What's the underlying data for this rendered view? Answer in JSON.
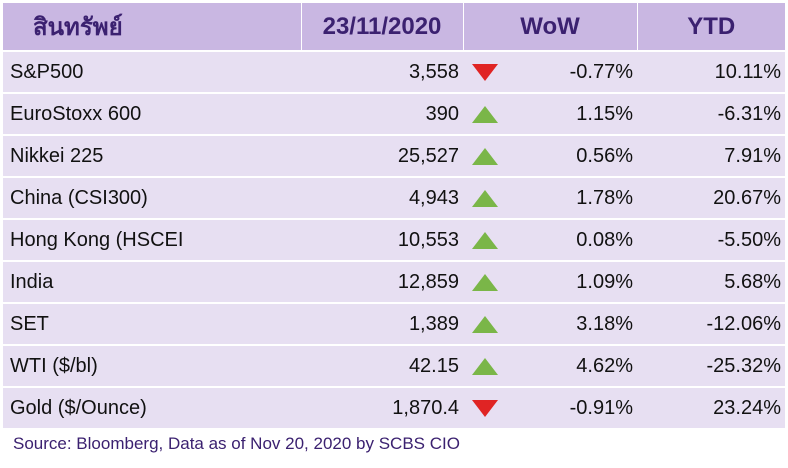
{
  "chart_data": {
    "type": "table",
    "columns": [
      "สินทรัพย์",
      "23/11/2020",
      "WoW",
      "YTD"
    ],
    "rows": [
      {
        "asset": "S&P500",
        "value": "3,558",
        "direction": "down",
        "wow": "-0.77%",
        "ytd": "10.11%"
      },
      {
        "asset": "EuroStoxx 600",
        "value": "390",
        "direction": "up",
        "wow": "1.15%",
        "ytd": "-6.31%"
      },
      {
        "asset": "Nikkei 225",
        "value": "25,527",
        "direction": "up",
        "wow": "0.56%",
        "ytd": "7.91%"
      },
      {
        "asset": "China (CSI300)",
        "value": "4,943",
        "direction": "up",
        "wow": "1.78%",
        "ytd": "20.67%"
      },
      {
        "asset": "Hong Kong (HSCEI",
        "value": "10,553",
        "direction": "up",
        "wow": "0.08%",
        "ytd": "-5.50%"
      },
      {
        "asset": "India",
        "value": "12,859",
        "direction": "up",
        "wow": "1.09%",
        "ytd": "5.68%"
      },
      {
        "asset": "SET",
        "value": "1,389",
        "direction": "up",
        "wow": "3.18%",
        "ytd": "-12.06%"
      },
      {
        "asset": "WTI ($/bl)",
        "value": "42.15",
        "direction": "up",
        "wow": "4.62%",
        "ytd": "-25.32%"
      },
      {
        "asset": "Gold ($/Ounce)",
        "value": "1,870.4",
        "direction": "down",
        "wow": "-0.91%",
        "ytd": "23.24%"
      }
    ],
    "source": "Source: Bloomberg, Data as of Nov 20, 2020 by SCBS CIO"
  },
  "colors": {
    "header_bg": "#c9b7e2",
    "header_text": "#3b2170",
    "row_bg": "#e7dff2",
    "up_arrow": "#7ab648",
    "down_arrow": "#e02424",
    "source_text": "#3b2170"
  },
  "icons": {
    "up": "triangle-up-icon",
    "down": "triangle-down-icon"
  }
}
